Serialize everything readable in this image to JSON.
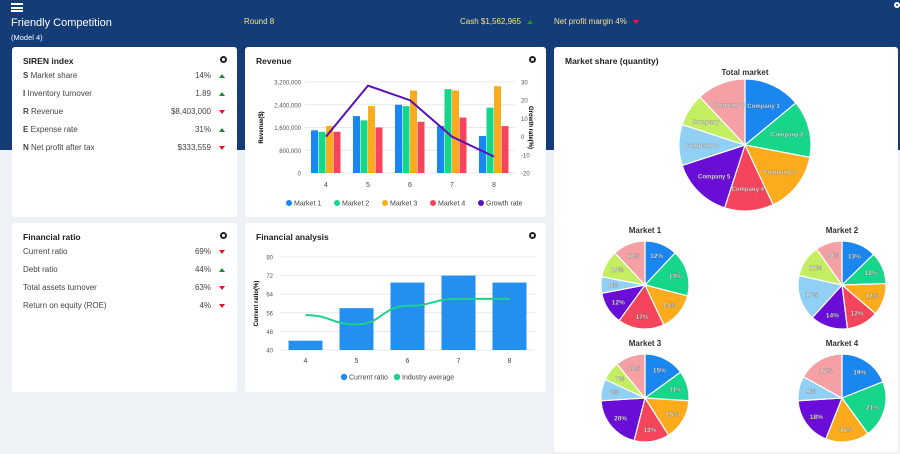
{
  "header": {
    "title": "Friendly Competition",
    "subtitle": "(Model 4)",
    "round": "Round 8",
    "cash": "Cash $1,562,965",
    "cash_trend": "up",
    "margin": "Net profit margin 4%",
    "margin_trend": "down"
  },
  "siren": {
    "title": "SIREN index",
    "rows": [
      {
        "letter": "S",
        "label": "Market share",
        "value": "14%",
        "trend": "up"
      },
      {
        "letter": "I",
        "label": "Inventory turnover",
        "value": "1.89",
        "trend": "up"
      },
      {
        "letter": "R",
        "label": "Revenue",
        "value": "$8,403,000",
        "trend": "down"
      },
      {
        "letter": "E",
        "label": "Expense rate",
        "value": "31%",
        "trend": "up"
      },
      {
        "letter": "N",
        "label": "Net profit after tax",
        "value": "$333,559",
        "trend": "down"
      }
    ]
  },
  "ratio": {
    "title": "Financial ratio",
    "rows": [
      {
        "label": "Current ratio",
        "value": "69%",
        "trend": "down"
      },
      {
        "label": "Debt ratio",
        "value": "44%",
        "trend": "up"
      },
      {
        "label": "Total assets turnover",
        "value": "63%",
        "trend": "down"
      },
      {
        "label": "Return on equity (ROE)",
        "value": "4%",
        "trend": "down"
      }
    ]
  },
  "colors": {
    "c1": "#1a86f0",
    "c2": "#16d68a",
    "c3": "#fbab1c",
    "c4": "#f5455c",
    "c5": "#6a0dd6",
    "c6": "#8fd0f4",
    "c7": "#c4ee62",
    "c8": "#f4a0a4"
  },
  "chart_data": [
    {
      "type": "bar",
      "title": "Revenue",
      "categories": [
        "4",
        "5",
        "6",
        "7",
        "8"
      ],
      "ylabel": "Revenue($)",
      "y2label": "Growth rate(%)",
      "ylim": [
        0,
        3200000
      ],
      "y2lim": [
        -20,
        30
      ],
      "yticks": [
        "0",
        "800,000",
        "1,600,000",
        "2,400,000",
        "3,200,000"
      ],
      "y2ticks": [
        "-20",
        "-10",
        "0",
        "10",
        "20",
        "30"
      ],
      "series": [
        {
          "name": "Market 1",
          "values": [
            1500000,
            2000000,
            2400000,
            1650000,
            1300000
          ]
        },
        {
          "name": "Market 2",
          "values": [
            1450000,
            1850000,
            2350000,
            2950000,
            2300000
          ]
        },
        {
          "name": "Market 3",
          "values": [
            1650000,
            2350000,
            2900000,
            2900000,
            3050000
          ]
        },
        {
          "name": "Market 4",
          "values": [
            1450000,
            1600000,
            1800000,
            1950000,
            1650000
          ]
        }
      ],
      "line": {
        "name": "Growth rate",
        "values": [
          0,
          28,
          20,
          0,
          -11
        ]
      }
    },
    {
      "type": "bar",
      "title": "Financial analysis",
      "categories": [
        "4",
        "5",
        "6",
        "7",
        "8"
      ],
      "ylabel": "Current ratio(%)",
      "ylim": [
        40,
        80
      ],
      "yticks": [
        "40",
        "48",
        "56",
        "64",
        "72",
        "80"
      ],
      "series": [
        {
          "name": "Current ratio",
          "values": [
            44,
            58,
            69,
            72,
            69
          ]
        }
      ],
      "line": {
        "name": "Industry average",
        "values": [
          55,
          51,
          59,
          62,
          62
        ]
      }
    },
    {
      "type": "pie",
      "panel_title": "Market share (quantity)",
      "pies": [
        {
          "title": "Total market",
          "labels": [
            "Company 1",
            "Company 2",
            "Company 3",
            "Company 4",
            "Company 5",
            "Company 6",
            "Company 7",
            "Company 8"
          ],
          "values": [
            14,
            14,
            15,
            12,
            15,
            10,
            8,
            12
          ],
          "show": "labels"
        },
        {
          "title": "Market 1",
          "values": [
            12,
            17,
            14,
            17,
            12,
            6,
            10,
            12
          ],
          "companies": [
            1,
            2,
            3,
            4,
            5,
            6,
            7,
            8
          ]
        },
        {
          "title": "Market 2",
          "values": [
            13,
            12,
            12,
            12,
            14,
            17,
            12,
            10
          ],
          "companies": [
            1,
            2,
            3,
            4,
            5,
            6,
            7,
            8
          ]
        },
        {
          "title": "Market 3",
          "values": [
            15,
            11,
            15,
            13,
            20,
            8,
            7,
            11
          ],
          "companies": [
            1,
            2,
            3,
            4,
            5,
            6,
            7,
            8
          ]
        },
        {
          "title": "Market 4",
          "values": [
            19,
            21,
            16,
            18,
            9,
            17
          ],
          "companies": [
            1,
            2,
            3,
            5,
            6,
            8
          ]
        }
      ]
    }
  ]
}
